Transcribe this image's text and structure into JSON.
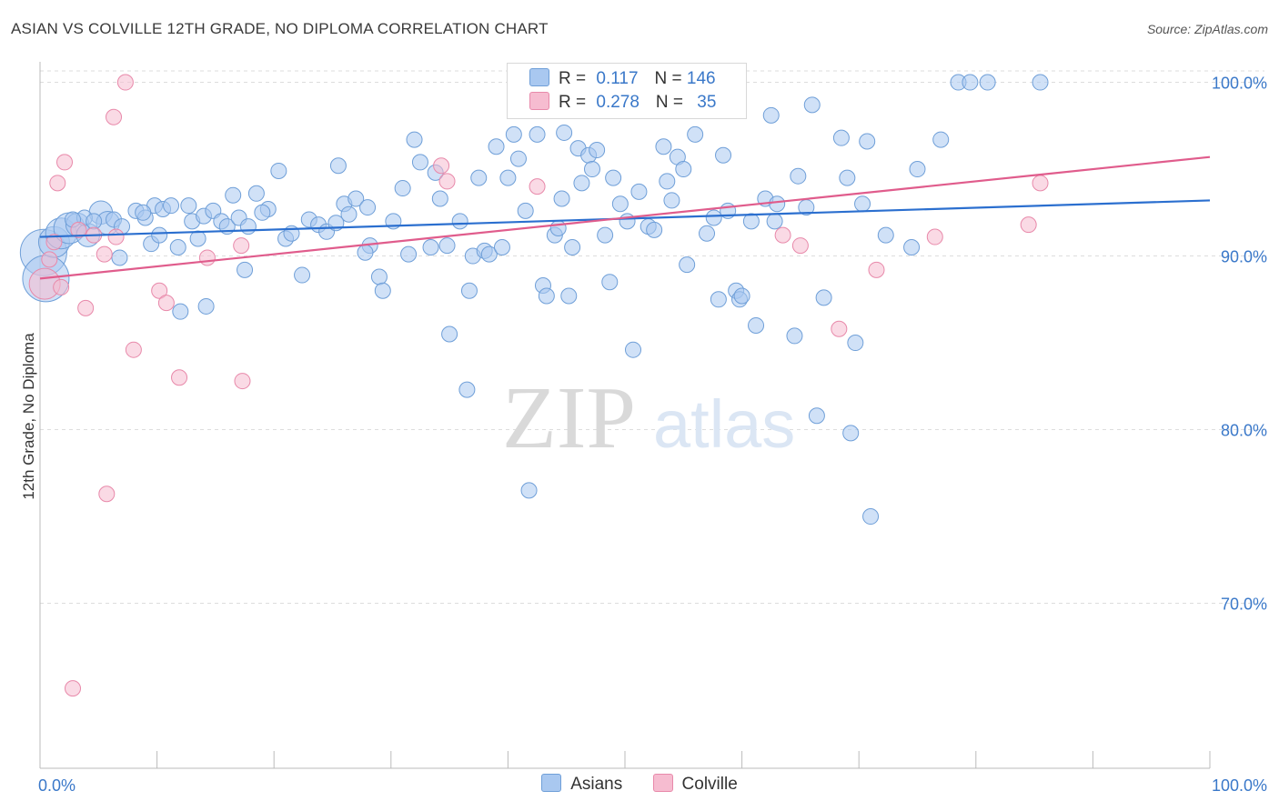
{
  "title": "ASIAN VS COLVILLE 12TH GRADE, NO DIPLOMA CORRELATION CHART",
  "source": "Source: ZipAtlas.com",
  "watermark": {
    "zip": "ZIP",
    "atlas": "atlas"
  },
  "legend": {
    "rows": [
      {
        "r_label": "R = ",
        "r_value": "0.117",
        "n_label": "N = ",
        "n_value": "146"
      },
      {
        "r_label": "R = ",
        "r_value": "0.278",
        "n_label": "N = ",
        "n_value": "35"
      }
    ]
  },
  "colors": {
    "asians_fill": "#a9c8f0",
    "asians_stroke": "#6f9fd8",
    "asians_line": "#2b6fcf",
    "colville_fill": "#f6bcd0",
    "colville_stroke": "#e889aa",
    "colville_line": "#e05c8c",
    "axis_text": "#3a78c9",
    "grid": "#dddddd"
  },
  "chart_data": {
    "type": "scatter",
    "title": "ASIAN VS COLVILLE 12TH GRADE, NO DIPLOMA CORRELATION CHART",
    "xlabel": "",
    "ylabel": "12th Grade, No Diploma",
    "x_tick_labels": [
      "0.0%",
      "100.0%"
    ],
    "y_tick_labels": [
      "100.0%",
      "90.0%",
      "80.0%",
      "70.0%"
    ],
    "y_ticks": [
      100,
      90,
      80,
      70
    ],
    "xlim": [
      0,
      100
    ],
    "ylim": [
      60.5,
      101.5
    ],
    "grid": true,
    "legend_position": "top-center",
    "series": [
      {
        "name": "Asians",
        "r": 0.117,
        "n": 146,
        "trend": {
          "x": [
            0,
            100
          ],
          "y": [
            91.1,
            93.2
          ]
        },
        "points": [
          [
            0.3,
            90.2,
            3
          ],
          [
            0.5,
            88.7,
            3
          ],
          [
            1.2,
            90.8,
            2
          ],
          [
            1.8,
            91.3,
            2
          ],
          [
            2.5,
            91.6,
            2
          ],
          [
            3.2,
            91.8,
            1.5
          ],
          [
            4.1,
            91.2,
            1.5
          ],
          [
            5.2,
            92.5,
            1.5
          ],
          [
            5.8,
            91.9,
            1.5
          ],
          [
            6.3,
            92.1,
            1
          ],
          [
            7.0,
            91.7,
            1
          ],
          [
            8.2,
            92.6,
            1
          ],
          [
            9.0,
            92.2,
            1
          ],
          [
            9.8,
            92.9,
            1
          ],
          [
            10.5,
            92.7,
            1
          ],
          [
            11.2,
            92.9,
            1
          ],
          [
            12.7,
            92.9,
            1
          ],
          [
            13.0,
            92.0,
            1
          ],
          [
            14.0,
            92.3,
            1
          ],
          [
            14.8,
            92.6,
            1
          ],
          [
            15.5,
            92.0,
            1
          ],
          [
            16.0,
            91.7,
            1
          ],
          [
            16.5,
            93.5,
            1
          ],
          [
            17.0,
            92.2,
            1
          ],
          [
            17.8,
            91.7,
            1
          ],
          [
            18.5,
            93.6,
            1
          ],
          [
            19.5,
            92.7,
            1
          ],
          [
            20.4,
            94.9,
            1
          ],
          [
            21.0,
            91.0,
            1
          ],
          [
            21.5,
            91.3,
            1
          ],
          [
            23.0,
            92.1,
            1
          ],
          [
            23.8,
            91.8,
            1
          ],
          [
            24.5,
            91.4,
            1
          ],
          [
            25.5,
            95.2,
            1
          ],
          [
            26.0,
            93.0,
            1
          ],
          [
            26.4,
            92.4,
            1
          ],
          [
            27.0,
            93.3,
            1
          ],
          [
            28.0,
            92.8,
            1
          ],
          [
            28.2,
            90.6,
            1
          ],
          [
            29.0,
            88.8,
            1
          ],
          [
            29.3,
            88.0,
            1
          ],
          [
            30.2,
            92.0,
            1
          ],
          [
            31.0,
            93.9,
            1
          ],
          [
            31.5,
            90.1,
            1
          ],
          [
            32.0,
            96.7,
            1
          ],
          [
            32.5,
            95.4,
            1
          ],
          [
            33.8,
            94.8,
            1
          ],
          [
            34.2,
            93.3,
            1
          ],
          [
            34.8,
            90.6,
            1
          ],
          [
            35.0,
            85.5,
            1
          ],
          [
            35.9,
            92.0,
            1
          ],
          [
            36.5,
            82.3,
            1
          ],
          [
            37.0,
            90.0,
            1
          ],
          [
            37.5,
            94.5,
            1
          ],
          [
            38.0,
            90.3,
            1
          ],
          [
            38.4,
            90.1,
            1
          ],
          [
            39.0,
            96.3,
            1
          ],
          [
            39.5,
            90.5,
            1
          ],
          [
            40.0,
            94.5,
            1
          ],
          [
            40.5,
            97.0,
            1
          ],
          [
            40.9,
            95.6,
            1
          ],
          [
            41.5,
            92.6,
            1
          ],
          [
            41.8,
            76.5,
            1
          ],
          [
            42.5,
            97.0,
            1
          ],
          [
            43.0,
            88.3,
            1
          ],
          [
            43.3,
            87.7,
            1
          ],
          [
            44.0,
            91.2,
            1
          ],
          [
            44.3,
            91.6,
            1
          ],
          [
            44.8,
            97.1,
            1
          ],
          [
            45.2,
            87.7,
            1
          ],
          [
            45.5,
            90.5,
            1
          ],
          [
            46.0,
            96.2,
            1
          ],
          [
            46.3,
            94.2,
            1
          ],
          [
            46.9,
            95.8,
            1
          ],
          [
            47.2,
            95.0,
            1
          ],
          [
            47.6,
            96.1,
            1
          ],
          [
            48.3,
            91.2,
            1
          ],
          [
            48.7,
            88.5,
            1
          ],
          [
            49.0,
            94.5,
            1
          ],
          [
            49.6,
            93.0,
            1
          ],
          [
            50.2,
            92.0,
            1
          ],
          [
            50.7,
            84.6,
            1
          ],
          [
            51.2,
            93.7,
            1
          ],
          [
            52.0,
            91.7,
            1
          ],
          [
            52.5,
            91.5,
            1
          ],
          [
            53.3,
            96.3,
            1
          ],
          [
            53.6,
            94.3,
            1
          ],
          [
            54.0,
            93.2,
            1
          ],
          [
            54.5,
            95.7,
            1
          ],
          [
            55.0,
            95.0,
            1
          ],
          [
            55.3,
            89.5,
            1
          ],
          [
            56.0,
            97.0,
            1
          ],
          [
            57.0,
            91.3,
            1
          ],
          [
            58.0,
            87.5,
            1
          ],
          [
            58.4,
            95.8,
            1
          ],
          [
            58.8,
            92.6,
            1
          ],
          [
            59.5,
            88.0,
            1
          ],
          [
            59.8,
            87.5,
            1
          ],
          [
            60.0,
            87.7,
            1
          ],
          [
            60.8,
            92.0,
            1
          ],
          [
            61.2,
            86.0,
            1
          ],
          [
            62.0,
            93.3,
            1
          ],
          [
            62.5,
            98.1,
            1
          ],
          [
            63.0,
            93.0,
            1
          ],
          [
            64.5,
            85.4,
            1
          ],
          [
            64.8,
            94.6,
            1
          ],
          [
            65.5,
            92.8,
            1
          ],
          [
            66.0,
            98.7,
            1
          ],
          [
            66.4,
            80.8,
            1
          ],
          [
            67.0,
            87.6,
            1
          ],
          [
            68.5,
            96.8,
            1
          ],
          [
            69.0,
            94.5,
            1
          ],
          [
            69.3,
            79.8,
            1
          ],
          [
            69.7,
            85.0,
            1
          ],
          [
            70.3,
            93.0,
            1
          ],
          [
            70.7,
            96.6,
            1
          ],
          [
            71.0,
            75.0,
            1
          ],
          [
            74.5,
            90.5,
            1
          ],
          [
            75.0,
            95.0,
            1
          ],
          [
            77.0,
            96.7,
            1
          ],
          [
            78.5,
            100.0,
            1
          ],
          [
            79.5,
            100.0,
            1
          ],
          [
            81.0,
            100.0,
            1
          ],
          [
            85.5,
            100.0,
            1
          ],
          [
            3.8,
            92.2,
            1
          ],
          [
            6.8,
            89.9,
            1
          ],
          [
            12.0,
            86.8,
            1
          ],
          [
            14.2,
            87.1,
            1
          ],
          [
            11.8,
            90.5,
            1
          ],
          [
            17.5,
            89.2,
            1
          ],
          [
            22.4,
            88.9,
            1
          ],
          [
            19.0,
            92.5,
            1
          ],
          [
            36.7,
            88.0,
            1
          ],
          [
            25.3,
            91.9,
            1
          ],
          [
            33.4,
            90.5,
            1
          ],
          [
            2.8,
            92.1,
            1
          ],
          [
            8.8,
            92.5,
            1
          ],
          [
            13.5,
            91.0,
            1
          ],
          [
            9.5,
            90.7,
            1
          ],
          [
            4.6,
            92.0,
            1
          ],
          [
            27.8,
            90.2,
            1
          ],
          [
            44.6,
            93.3,
            1
          ],
          [
            57.6,
            92.2,
            1
          ],
          [
            72.3,
            91.2,
            1
          ],
          [
            62.8,
            92.0,
            1
          ],
          [
            10.2,
            91.2,
            1
          ]
        ]
      },
      {
        "name": "Colville",
        "r": 0.278,
        "n": 35,
        "trend": {
          "x": [
            0,
            100
          ],
          "y": [
            88.7,
            95.7
          ]
        },
        "points": [
          [
            0.4,
            88.4,
            2
          ],
          [
            0.8,
            89.8,
            1
          ],
          [
            1.5,
            94.2,
            1
          ],
          [
            2.1,
            95.4,
            1
          ],
          [
            2.8,
            65.1,
            1
          ],
          [
            3.9,
            87.0,
            1
          ],
          [
            4.6,
            91.2,
            1
          ],
          [
            5.5,
            90.1,
            1
          ],
          [
            5.7,
            76.3,
            1
          ],
          [
            6.3,
            98.0,
            1
          ],
          [
            6.5,
            91.1,
            1
          ],
          [
            7.3,
            100.0,
            1
          ],
          [
            8.0,
            84.6,
            1
          ],
          [
            10.2,
            88.0,
            1
          ],
          [
            10.8,
            87.3,
            1
          ],
          [
            11.9,
            83.0,
            1
          ],
          [
            14.3,
            89.9,
            1
          ],
          [
            17.2,
            90.6,
            1
          ],
          [
            17.3,
            82.8,
            1
          ],
          [
            1.8,
            88.2,
            1
          ],
          [
            34.3,
            95.2,
            1
          ],
          [
            34.8,
            94.3,
            1
          ],
          [
            42.5,
            94.0,
            1
          ],
          [
            44.8,
            100.0,
            1
          ],
          [
            53.0,
            100.0,
            1
          ],
          [
            63.5,
            91.2,
            1
          ],
          [
            65.0,
            90.6,
            1
          ],
          [
            68.3,
            85.8,
            1
          ],
          [
            71.5,
            89.2,
            1
          ],
          [
            76.5,
            91.1,
            1
          ],
          [
            84.5,
            91.8,
            1
          ],
          [
            85.5,
            94.2,
            1
          ],
          [
            1.2,
            90.8,
            1
          ],
          [
            3.3,
            91.5,
            1
          ],
          [
            44.0,
            100.0,
            1
          ]
        ]
      }
    ]
  },
  "bottom_legend": [
    {
      "label": "Asians"
    },
    {
      "label": "Colville"
    }
  ]
}
